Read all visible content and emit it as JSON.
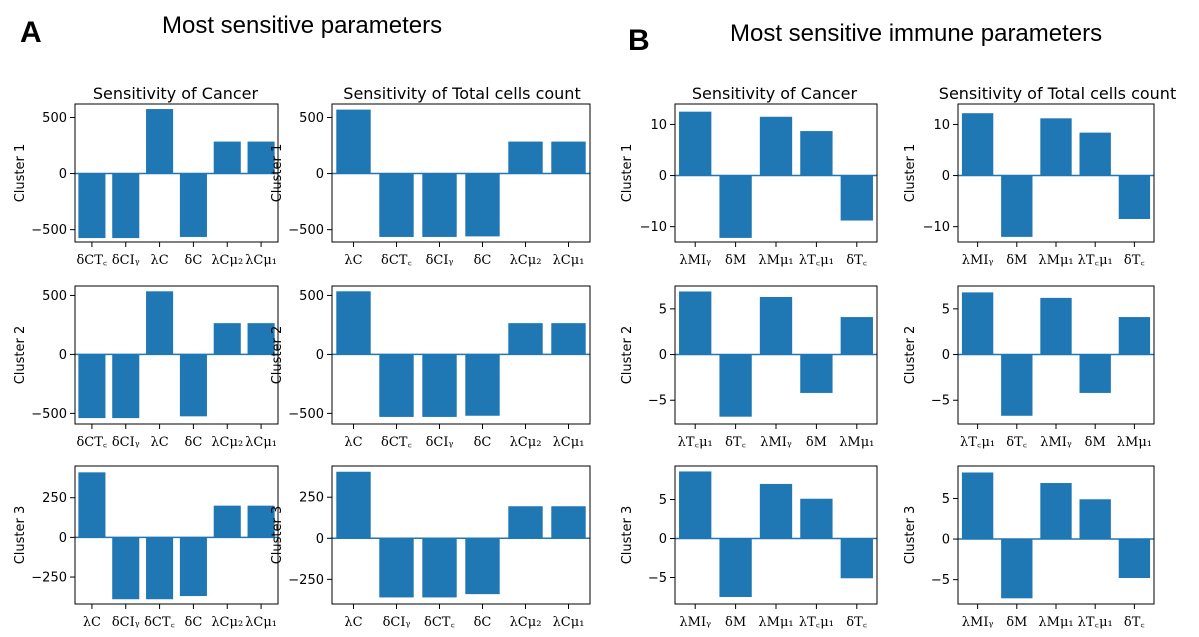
{
  "figure": {
    "panel_a_letter": "A",
    "panel_a_title": "Most sensitive parameters",
    "panel_b_letter": "B",
    "panel_b_title": "Most sensitive immune parameters",
    "col_titles": [
      "Sensitivity of Cancer",
      "Sensitivity of Total cells count",
      "Sensitivity of Cancer",
      "Sensitivity of Total cells count"
    ]
  },
  "colors": {
    "bar": "#1f77b4",
    "zero_line": "#1f77b4",
    "axis": "#000000"
  },
  "chart_data": [
    {
      "type": "bar",
      "panel": "A",
      "title": "Sensitivity of Cancer",
      "ylabel": "Cluster 1",
      "ylim": [
        -610,
        620
      ],
      "yticks": [
        -500,
        0,
        500
      ],
      "yticklabels": [
        "−500",
        "0",
        "500"
      ],
      "categories": [
        "δCT꜀",
        "δCIᵧ",
        "λC",
        "δC",
        "λCμ₂",
        "λCμ₁"
      ],
      "values": [
        -575,
        -575,
        575,
        -565,
        285,
        285
      ]
    },
    {
      "type": "bar",
      "panel": "A",
      "title": "Sensitivity of Total cells count",
      "ylabel": "Cluster 1",
      "ylim": [
        -610,
        620
      ],
      "yticks": [
        -500,
        0,
        500
      ],
      "yticklabels": [
        "−500",
        "0",
        "500"
      ],
      "categories": [
        "λC",
        "δCT꜀",
        "δCIᵧ",
        "δC",
        "λCμ₂",
        "λCμ₁"
      ],
      "values": [
        570,
        -565,
        -565,
        -560,
        285,
        285
      ]
    },
    {
      "type": "bar",
      "panel": "B",
      "title": "Sensitivity of Cancer",
      "ylabel": "Cluster 1",
      "ylim": [
        -13,
        14
      ],
      "yticks": [
        -10,
        0,
        10
      ],
      "yticklabels": [
        "−10",
        "0",
        "10"
      ],
      "categories": [
        "λMIᵧ",
        "δM",
        "λMμ₁",
        "λT꜀μ₁",
        "δT꜀"
      ],
      "values": [
        12.5,
        -12.2,
        11.5,
        8.7,
        -8.8
      ]
    },
    {
      "type": "bar",
      "panel": "B",
      "title": "Sensitivity of Total cells count",
      "ylabel": "Cluster 1",
      "ylim": [
        -13,
        14
      ],
      "yticks": [
        -10,
        0,
        10
      ],
      "yticklabels": [
        "−10",
        "0",
        "10"
      ],
      "categories": [
        "λMIᵧ",
        "δM",
        "λMμ₁",
        "λT꜀μ₁",
        "δT꜀"
      ],
      "values": [
        12.2,
        -12.0,
        11.2,
        8.4,
        -8.5
      ]
    },
    {
      "type": "bar",
      "panel": "A",
      "ylabel": "Cluster 2",
      "ylim": [
        -590,
        580
      ],
      "yticks": [
        -500,
        0,
        500
      ],
      "yticklabels": [
        "−500",
        "0",
        "500"
      ],
      "categories": [
        "δCT꜀",
        "δCIᵧ",
        "λC",
        "δC",
        "λCμ₂",
        "λCμ₁"
      ],
      "values": [
        -540,
        -540,
        535,
        -525,
        265,
        265
      ]
    },
    {
      "type": "bar",
      "panel": "A",
      "ylabel": "Cluster 2",
      "ylim": [
        -590,
        580
      ],
      "yticks": [
        -500,
        0,
        500
      ],
      "yticklabels": [
        "−500",
        "0",
        "500"
      ],
      "categories": [
        "λC",
        "δCT꜀",
        "δCIᵧ",
        "δC",
        "λCμ₂",
        "λCμ₁"
      ],
      "values": [
        535,
        -530,
        -530,
        -520,
        265,
        265
      ]
    },
    {
      "type": "bar",
      "panel": "B",
      "ylabel": "Cluster 2",
      "ylim": [
        -7.6,
        7.5
      ],
      "yticks": [
        -5,
        0,
        5
      ],
      "yticklabels": [
        "−5",
        "0",
        "5"
      ],
      "categories": [
        "λT꜀μ₁",
        "δT꜀",
        "λMIᵧ",
        "δM",
        "λMμ₁"
      ],
      "values": [
        6.9,
        -6.8,
        6.3,
        -4.2,
        4.1
      ]
    },
    {
      "type": "bar",
      "panel": "B",
      "ylabel": "Cluster 2",
      "ylim": [
        -7.6,
        7.5
      ],
      "yticks": [
        -5,
        0,
        5
      ],
      "yticklabels": [
        "−5",
        "0",
        "5"
      ],
      "categories": [
        "λT꜀μ₁",
        "δT꜀",
        "λMIᵧ",
        "δM",
        "λMμ₁"
      ],
      "values": [
        6.8,
        -6.7,
        6.2,
        -4.2,
        4.1
      ]
    },
    {
      "type": "bar",
      "panel": "A",
      "ylabel": "Cluster 3",
      "ylim": [
        -420,
        450
      ],
      "yticks": [
        -250,
        0,
        250
      ],
      "yticklabels": [
        "−250",
        "0",
        "250"
      ],
      "categories": [
        "λC",
        "δCIᵧ",
        "δCT꜀",
        "δC",
        "λCμ₂",
        "λCμ₁"
      ],
      "values": [
        410,
        -390,
        -390,
        -370,
        200,
        200
      ]
    },
    {
      "type": "bar",
      "panel": "A",
      "ylabel": "Cluster 3",
      "ylim": [
        -400,
        440
      ],
      "yticks": [
        -250,
        0,
        250
      ],
      "yticklabels": [
        "−250",
        "0",
        "250"
      ],
      "categories": [
        "λC",
        "δCIᵧ",
        "δCT꜀",
        "δC",
        "λCμ₂",
        "λCμ₁"
      ],
      "values": [
        405,
        -360,
        -360,
        -340,
        195,
        195
      ]
    },
    {
      "type": "bar",
      "panel": "B",
      "ylabel": "Cluster 3",
      "ylim": [
        -8.4,
        9.3
      ],
      "yticks": [
        -5,
        0,
        5
      ],
      "yticklabels": [
        "−5",
        "0",
        "5"
      ],
      "categories": [
        "λMIᵧ",
        "δM",
        "λMμ₁",
        "λT꜀μ₁",
        "δT꜀"
      ],
      "values": [
        8.6,
        -7.5,
        7.0,
        5.1,
        -5.1
      ]
    },
    {
      "type": "bar",
      "panel": "B",
      "ylabel": "Cluster 3",
      "ylim": [
        -8.0,
        9.0
      ],
      "yticks": [
        -5,
        0,
        5
      ],
      "yticklabels": [
        "−5",
        "0",
        "5"
      ],
      "categories": [
        "λMIᵧ",
        "δM",
        "λMμ₁",
        "λT꜀μ₁",
        "δT꜀"
      ],
      "values": [
        8.2,
        -7.3,
        6.9,
        4.9,
        -4.8
      ]
    }
  ]
}
